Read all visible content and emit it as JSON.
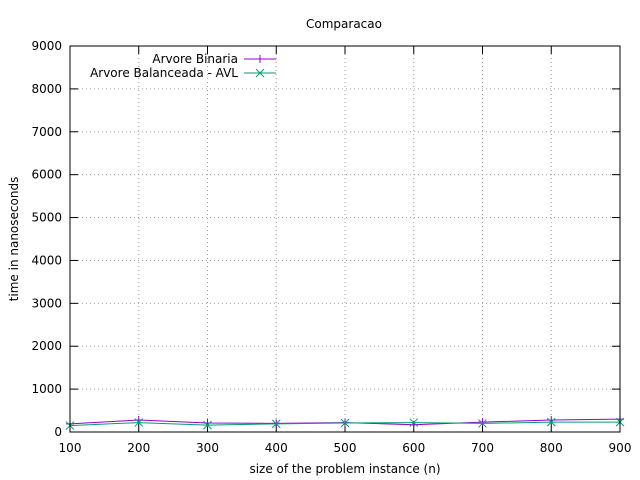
{
  "chart_data": {
    "type": "line",
    "title": "Comparacao",
    "xlabel": "size of the problem instance (n)",
    "ylabel": "time in nanoseconds",
    "xlim": [
      100,
      900
    ],
    "ylim": [
      0,
      9000
    ],
    "x_ticks": [
      100,
      200,
      300,
      400,
      500,
      600,
      700,
      800,
      900
    ],
    "y_ticks": [
      0,
      1000,
      2000,
      3000,
      4000,
      5000,
      6000,
      7000,
      8000,
      9000
    ],
    "grid": true,
    "legend_position": "top-left",
    "x": [
      100,
      200,
      300,
      400,
      500,
      600,
      700,
      800,
      900
    ],
    "series": [
      {
        "name": "Arvore Binaria",
        "color": "#9400d3",
        "marker": "plus",
        "values": [
          190,
          280,
          210,
          200,
          220,
          170,
          230,
          280,
          300
        ]
      },
      {
        "name": "Arvore Balanceada - AVL",
        "color": "#009e73",
        "marker": "cross",
        "values": [
          150,
          220,
          160,
          190,
          210,
          220,
          200,
          230,
          230
        ]
      }
    ]
  }
}
